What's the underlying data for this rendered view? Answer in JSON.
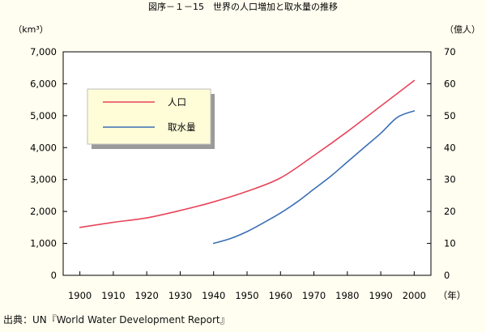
{
  "title": "図序－１－15　世界の人口増加と取水量の推移",
  "source": "出典：UN『World Water Development Report』",
  "colors": {
    "background": "#fffef0",
    "plot_background": "#ffffff",
    "population": "#e8445a",
    "withdrawal": "#3a6fb5",
    "legend_background": "#fffdd8",
    "legend_shadow": "#9a9a9a"
  },
  "chart_data": {
    "type": "line",
    "title": "図序－１－15　世界の人口増加と取水量の推移",
    "x_unit_label": "（年）",
    "x_ticks": [
      1900,
      1910,
      1920,
      1930,
      1940,
      1950,
      1960,
      1970,
      1980,
      1990,
      2000
    ],
    "xlim": [
      1895,
      2005
    ],
    "y_left": {
      "unit_label": "（km³）",
      "ylim": [
        0,
        7000
      ],
      "ticks": [
        "0",
        "1,000",
        "2,000",
        "3,000",
        "4,000",
        "5,000",
        "6,000",
        "7,000"
      ]
    },
    "y_right": {
      "unit_label": "（億人）",
      "ylim": [
        0,
        70
      ],
      "ticks": [
        "0",
        "10",
        "20",
        "30",
        "40",
        "50",
        "60",
        "70"
      ]
    },
    "grid": false,
    "legend": "upper-left, inside plot",
    "series": [
      {
        "name": "人口",
        "axis": "right",
        "x": [
          1900,
          1910,
          1920,
          1930,
          1940,
          1950,
          1960,
          1970,
          1980,
          1990,
          2000
        ],
        "y": [
          15.0,
          16.6,
          18.0,
          20.3,
          23.0,
          26.3,
          30.5,
          37.5,
          45.0,
          53.0,
          61.0
        ]
      },
      {
        "name": "取水量",
        "axis": "left",
        "x": [
          1940,
          1945,
          1950,
          1955,
          1960,
          1965,
          1970,
          1975,
          1980,
          1985,
          1990,
          1995,
          2000
        ],
        "y": [
          1000,
          1150,
          1370,
          1650,
          1950,
          2300,
          2700,
          3100,
          3550,
          4000,
          4450,
          4950,
          5150
        ]
      }
    ]
  }
}
